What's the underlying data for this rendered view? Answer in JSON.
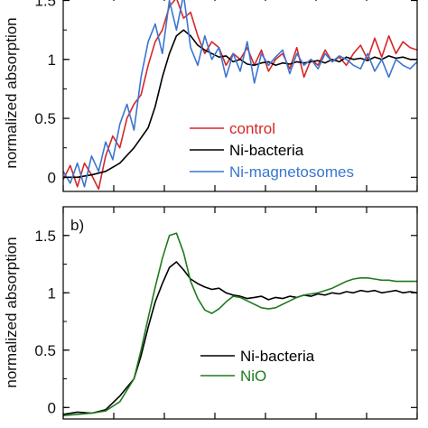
{
  "chart_data": [
    {
      "type": "line",
      "panel_label": "",
      "ylabel": "normalized absorption",
      "xlabel": "",
      "ylim": [
        -0.12,
        1.55
      ],
      "yticks": [
        0,
        0.5,
        1,
        1.5
      ],
      "ytick_labels": [
        "0",
        "0.5",
        "1",
        "1.5"
      ],
      "x_tick_count": 7,
      "legend_position": "bottom-right",
      "series": [
        {
          "name": "control",
          "color": "#d62728",
          "x": [
            0,
            2,
            4,
            6,
            8,
            10,
            12,
            14,
            16,
            18,
            20,
            22,
            24,
            26,
            28,
            30,
            32,
            34,
            36,
            38,
            40,
            42,
            44,
            46,
            48,
            50,
            52,
            54,
            56,
            58,
            60,
            62,
            64,
            66,
            68,
            70,
            72,
            74,
            76,
            78,
            80,
            82,
            84,
            86,
            88,
            90,
            92,
            94,
            96,
            98,
            100
          ],
          "y": [
            -0.02,
            0.1,
            -0.08,
            0.12,
            0.02,
            -0.1,
            0.18,
            0.35,
            0.25,
            0.5,
            0.62,
            0.7,
            0.95,
            1.15,
            1.25,
            1.45,
            1.52,
            1.35,
            1.4,
            1.2,
            1.05,
            1.15,
            1.1,
            0.95,
            1.05,
            1.0,
            1.1,
            0.95,
            1.08,
            0.9,
            1.0,
            1.05,
            0.92,
            1.1,
            0.85,
            1.0,
            0.95,
            1.08,
            0.98,
            1.02,
            0.95,
            1.05,
            1.12,
            1.0,
            1.18,
            1.02,
            1.2,
            1.05,
            1.15,
            1.1,
            1.08
          ]
        },
        {
          "name": "Ni-bacteria",
          "color": "#000000",
          "x": [
            0,
            4,
            8,
            12,
            16,
            20,
            24,
            26,
            28,
            30,
            32,
            34,
            36,
            38,
            40,
            42,
            44,
            46,
            48,
            50,
            52,
            54,
            56,
            58,
            60,
            62,
            64,
            66,
            68,
            70,
            72,
            74,
            76,
            78,
            80,
            82,
            84,
            86,
            88,
            90,
            92,
            94,
            96,
            98,
            100
          ],
          "y": [
            0.0,
            0.0,
            0.02,
            0.05,
            0.12,
            0.25,
            0.42,
            0.6,
            0.85,
            1.05,
            1.2,
            1.25,
            1.2,
            1.12,
            1.08,
            1.05,
            1.02,
            1.03,
            0.98,
            1.0,
            0.96,
            0.95,
            0.97,
            0.98,
            0.95,
            0.97,
            0.96,
            0.98,
            0.97,
            0.98,
            0.99,
            0.97,
            1.0,
            0.98,
            1.02,
            1.0,
            1.01,
            0.99,
            1.02,
            1.0,
            1.03,
            1.01,
            1.02,
            1.0,
            1.0
          ]
        },
        {
          "name": "Ni-magnetosomes",
          "color": "#3a75d1",
          "x": [
            0,
            2,
            4,
            6,
            8,
            10,
            12,
            14,
            16,
            18,
            20,
            22,
            24,
            26,
            28,
            30,
            32,
            34,
            36,
            38,
            40,
            42,
            44,
            46,
            48,
            50,
            52,
            54,
            56,
            58,
            60,
            62,
            64,
            66,
            68,
            70,
            72,
            74,
            76,
            78,
            80,
            82,
            84,
            86,
            88,
            90,
            92,
            94,
            96,
            98,
            100
          ],
          "y": [
            0.05,
            -0.05,
            0.12,
            -0.08,
            0.18,
            0.05,
            0.3,
            0.15,
            0.45,
            0.62,
            0.4,
            0.85,
            1.15,
            1.3,
            1.05,
            1.5,
            1.25,
            1.55,
            1.1,
            0.95,
            1.2,
            1.0,
            1.1,
            0.85,
            1.05,
            0.9,
            1.15,
            0.8,
            1.05,
            0.95,
            1.02,
            1.08,
            0.88,
            1.05,
            0.95,
            1.0,
            0.92,
            1.05,
            0.98,
            1.03,
            1.0,
            0.95,
            0.92,
            1.05,
            0.9,
            1.0,
            0.85,
            1.0,
            0.95,
            0.92,
            0.98
          ]
        }
      ]
    },
    {
      "type": "line",
      "panel_label": "b)",
      "ylabel": "normalized absorption",
      "xlabel": "",
      "ylim": [
        -0.1,
        1.75
      ],
      "yticks": [
        0,
        0.5,
        1,
        1.5
      ],
      "ytick_labels": [
        "0",
        "0.5",
        "1",
        "1.5"
      ],
      "x_tick_count": 7,
      "legend_position": "bottom-right",
      "series": [
        {
          "name": "Ni-bacteria",
          "color": "#000000",
          "x": [
            0,
            4,
            8,
            12,
            16,
            20,
            22,
            24,
            26,
            28,
            30,
            32,
            34,
            36,
            38,
            40,
            42,
            44,
            46,
            48,
            50,
            52,
            54,
            56,
            58,
            60,
            62,
            64,
            66,
            68,
            70,
            72,
            74,
            76,
            78,
            80,
            82,
            84,
            86,
            88,
            90,
            92,
            94,
            96,
            98,
            100
          ],
          "y": [
            -0.06,
            -0.04,
            -0.05,
            -0.02,
            0.1,
            0.25,
            0.45,
            0.7,
            0.92,
            1.08,
            1.22,
            1.27,
            1.2,
            1.12,
            1.08,
            1.05,
            1.03,
            1.04,
            1.0,
            0.98,
            0.97,
            0.95,
            0.96,
            0.97,
            0.94,
            0.96,
            0.95,
            0.97,
            0.96,
            0.98,
            0.97,
            0.99,
            0.98,
            1.0,
            0.99,
            1.01,
            1.0,
            1.02,
            1.01,
            1.02,
            1.0,
            1.01,
            1.02,
            1.0,
            1.01,
            1.0
          ]
        },
        {
          "name": "NiO",
          "color": "#1f7a1f",
          "x": [
            0,
            4,
            8,
            12,
            16,
            20,
            22,
            24,
            26,
            28,
            30,
            32,
            34,
            36,
            38,
            40,
            42,
            44,
            46,
            48,
            50,
            52,
            54,
            56,
            58,
            60,
            62,
            64,
            66,
            68,
            70,
            72,
            74,
            76,
            78,
            80,
            82,
            84,
            86,
            88,
            90,
            92,
            94,
            96,
            98,
            100
          ],
          "y": [
            -0.07,
            -0.06,
            -0.05,
            -0.03,
            0.05,
            0.25,
            0.5,
            0.78,
            1.05,
            1.3,
            1.5,
            1.52,
            1.35,
            1.1,
            0.95,
            0.85,
            0.82,
            0.86,
            0.92,
            0.97,
            0.96,
            0.93,
            0.9,
            0.87,
            0.86,
            0.87,
            0.9,
            0.93,
            0.96,
            0.98,
            0.99,
            1.0,
            1.02,
            1.04,
            1.07,
            1.1,
            1.12,
            1.13,
            1.13,
            1.12,
            1.11,
            1.11,
            1.1,
            1.1,
            1.1,
            1.1
          ]
        }
      ]
    }
  ]
}
